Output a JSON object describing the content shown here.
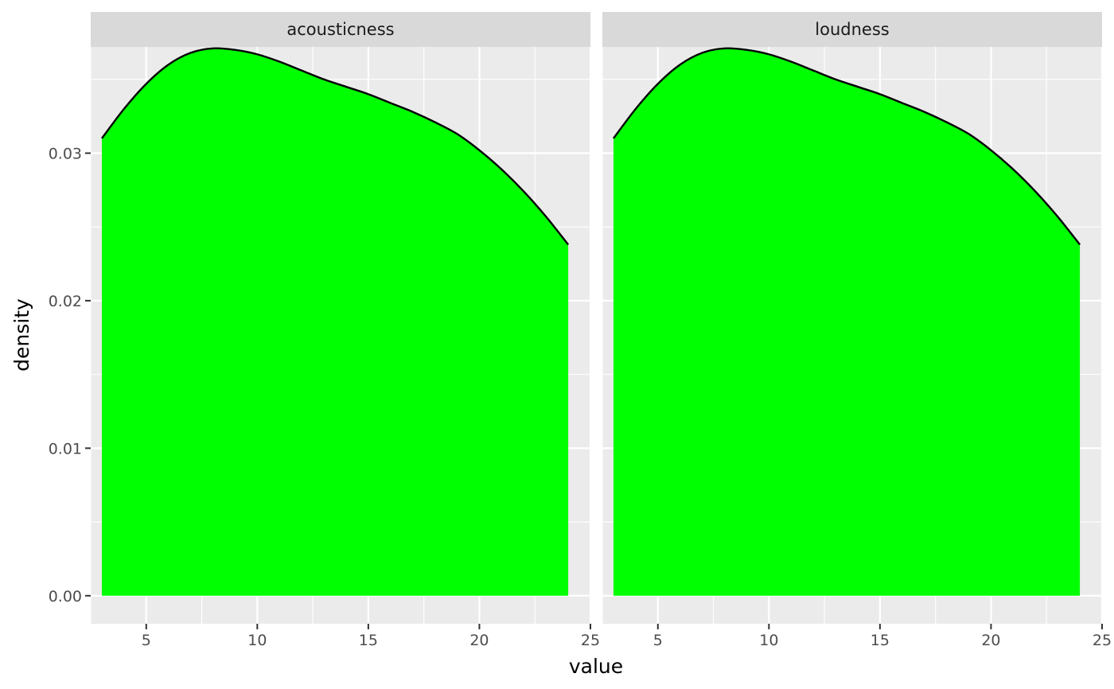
{
  "chart_data": {
    "type": "area",
    "chart_kind": "faceted density plot",
    "title": "",
    "xlabel": "value",
    "ylabel": "density",
    "xlim": [
      2.5,
      25
    ],
    "ylim": [
      -0.0019,
      0.0372
    ],
    "x_ticks": [
      5,
      10,
      15,
      20,
      25
    ],
    "x_minor_ticks": [
      2.5,
      7.5,
      12.5,
      17.5,
      22.5
    ],
    "y_ticks": [
      0.0,
      0.01,
      0.02,
      0.03
    ],
    "y_tick_labels": [
      "0.00",
      "0.01",
      "0.02",
      "0.03"
    ],
    "y_minor_ticks": [
      0.005,
      0.015,
      0.025,
      0.035
    ],
    "grid": true,
    "legend": "none",
    "colors": {
      "fill": "#00ff00",
      "outline": "#000000",
      "panel_background": "#ebebeb",
      "grid": "#ffffff",
      "strip_background": "#d9d9d9"
    },
    "facets": [
      {
        "label": "acousticness",
        "x": [
          3,
          4,
          5,
          6,
          7,
          8,
          9,
          10,
          11,
          12,
          13,
          14,
          15,
          16,
          17,
          18,
          19,
          20,
          21,
          22,
          23,
          24
        ],
        "y": [
          0.031,
          0.033,
          0.0347,
          0.036,
          0.0368,
          0.0371,
          0.037,
          0.0367,
          0.0362,
          0.0356,
          0.035,
          0.0345,
          0.034,
          0.0334,
          0.0328,
          0.0321,
          0.0313,
          0.0302,
          0.0289,
          0.0274,
          0.0257,
          0.0238
        ]
      },
      {
        "label": "loudness",
        "x": [
          3,
          4,
          5,
          6,
          7,
          8,
          9,
          10,
          11,
          12,
          13,
          14,
          15,
          16,
          17,
          18,
          19,
          20,
          21,
          22,
          23,
          24
        ],
        "y": [
          0.031,
          0.033,
          0.0347,
          0.036,
          0.0368,
          0.0371,
          0.037,
          0.0367,
          0.0362,
          0.0356,
          0.035,
          0.0345,
          0.034,
          0.0334,
          0.0328,
          0.0321,
          0.0313,
          0.0302,
          0.0289,
          0.0274,
          0.0257,
          0.0238
        ]
      }
    ]
  }
}
